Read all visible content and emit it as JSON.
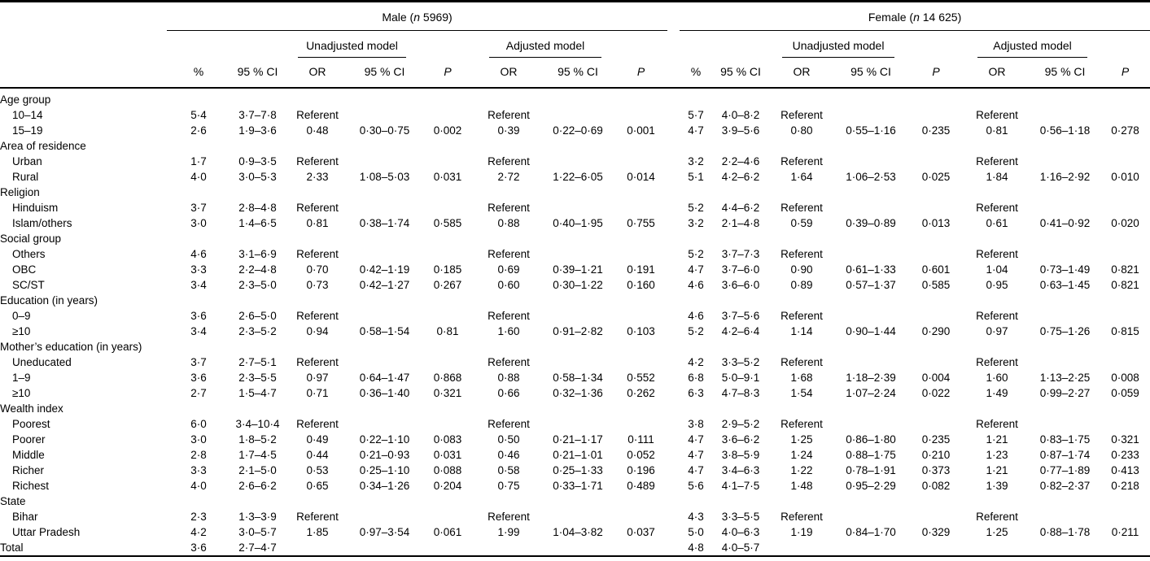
{
  "page": {
    "background": "#ffffff",
    "text_color": "#000000",
    "rule_color": "#000000"
  },
  "header": {
    "male_group": {
      "pre": "Male (",
      "it": "n",
      "post": " 5969)"
    },
    "female_group": {
      "pre": "Female (",
      "it": "n",
      "post": " 14 625)"
    },
    "unadjusted_label": "Unadjusted model",
    "adjusted_label": "Adjusted model",
    "columns": [
      "%",
      "95 % CI",
      "OR",
      "95 % CI",
      "P",
      "OR",
      "95 % CI",
      "P"
    ]
  },
  "rows": [
    {
      "label": "Age group",
      "indent": false,
      "male": [
        "",
        "",
        "",
        "",
        "",
        "",
        "",
        ""
      ],
      "female": [
        "",
        "",
        "",
        "",
        "",
        "",
        "",
        ""
      ]
    },
    {
      "label": "10–14",
      "indent": true,
      "male": [
        "5·4",
        "3·7–7·8",
        "Referent",
        "",
        "",
        "Referent",
        "",
        ""
      ],
      "female": [
        "5·7",
        "4·0–8·2",
        "Referent",
        "",
        "",
        "Referent",
        "",
        ""
      ]
    },
    {
      "label": "15–19",
      "indent": true,
      "male": [
        "2·6",
        "1·9–3·6",
        "0·48",
        "0·30–0·75",
        "0·002",
        "0·39",
        "0·22–0·69",
        "0·001"
      ],
      "female": [
        "4·7",
        "3·9–5·6",
        "0·80",
        "0·55–1·16",
        "0·235",
        "0·81",
        "0·56–1·18",
        "0·278"
      ]
    },
    {
      "label": "Area of residence",
      "indent": false,
      "male": [
        "",
        "",
        "",
        "",
        "",
        "",
        "",
        ""
      ],
      "female": [
        "",
        "",
        "",
        "",
        "",
        "",
        "",
        ""
      ]
    },
    {
      "label": "Urban",
      "indent": true,
      "male": [
        "1·7",
        "0·9–3·5",
        "Referent",
        "",
        "",
        "Referent",
        "",
        ""
      ],
      "female": [
        "3·2",
        "2·2–4·6",
        "Referent",
        "",
        "",
        "Referent",
        "",
        ""
      ]
    },
    {
      "label": "Rural",
      "indent": true,
      "male": [
        "4·0",
        "3·0–5·3",
        "2·33",
        "1·08–5·03",
        "0·031",
        "2·72",
        "1·22–6·05",
        "0·014"
      ],
      "female": [
        "5·1",
        "4·2–6·2",
        "1·64",
        "1·06–2·53",
        "0·025",
        "1·84",
        "1·16–2·92",
        "0·010"
      ]
    },
    {
      "label": "Religion",
      "indent": false,
      "male": [
        "",
        "",
        "",
        "",
        "",
        "",
        "",
        ""
      ],
      "female": [
        "",
        "",
        "",
        "",
        "",
        "",
        "",
        ""
      ]
    },
    {
      "label": "Hinduism",
      "indent": true,
      "male": [
        "3·7",
        "2·8–4·8",
        "Referent",
        "",
        "",
        "Referent",
        "",
        ""
      ],
      "female": [
        "5·2",
        "4·4–6·2",
        "Referent",
        "",
        "",
        "Referent",
        "",
        ""
      ]
    },
    {
      "label": "Islam/others",
      "indent": true,
      "male": [
        "3·0",
        "1·4–6·5",
        "0·81",
        "0·38–1·74",
        "0·585",
        "0·88",
        "0·40–1·95",
        "0·755"
      ],
      "female": [
        "3·2",
        "2·1–4·8",
        "0·59",
        "0·39–0·89",
        "0·013",
        "0·61",
        "0·41–0·92",
        "0·020"
      ]
    },
    {
      "label": "Social group",
      "indent": false,
      "male": [
        "",
        "",
        "",
        "",
        "",
        "",
        "",
        ""
      ],
      "female": [
        "",
        "",
        "",
        "",
        "",
        "",
        "",
        ""
      ]
    },
    {
      "label": "Others",
      "indent": true,
      "male": [
        "4·6",
        "3·1–6·9",
        "Referent",
        "",
        "",
        "Referent",
        "",
        ""
      ],
      "female": [
        "5·2",
        "3·7–7·3",
        "Referent",
        "",
        "",
        "Referent",
        "",
        ""
      ]
    },
    {
      "label": "OBC",
      "indent": true,
      "male": [
        "3·3",
        "2·2–4·8",
        "0·70",
        "0·42–1·19",
        "0·185",
        "0·69",
        "0·39–1·21",
        "0·191"
      ],
      "female": [
        "4·7",
        "3·7–6·0",
        "0·90",
        "0·61–1·33",
        "0·601",
        "1·04",
        "0·73–1·49",
        "0·821"
      ]
    },
    {
      "label": "SC/ST",
      "indent": true,
      "male": [
        "3·4",
        "2·3–5·0",
        "0·73",
        "0·42–1·27",
        "0·267",
        "0·60",
        "0·30–1·22",
        "0·160"
      ],
      "female": [
        "4·6",
        "3·6–6·0",
        "0·89",
        "0·57–1·37",
        "0·585",
        "0·95",
        "0·63–1·45",
        "0·821"
      ]
    },
    {
      "label": "Education (in years)",
      "indent": false,
      "male": [
        "",
        "",
        "",
        "",
        "",
        "",
        "",
        ""
      ],
      "female": [
        "",
        "",
        "",
        "",
        "",
        "",
        "",
        ""
      ]
    },
    {
      "label": "0–9",
      "indent": true,
      "male": [
        "3·6",
        "2·6–5·0",
        "Referent",
        "",
        "",
        "Referent",
        "",
        ""
      ],
      "female": [
        "4·6",
        "3·7–5·6",
        "Referent",
        "",
        "",
        "Referent",
        "",
        ""
      ]
    },
    {
      "label": "≥10",
      "indent": true,
      "male": [
        "3·4",
        "2·3–5·2",
        "0·94",
        "0·58–1·54",
        "0·81",
        "1·60",
        "0·91–2·82",
        "0·103"
      ],
      "female": [
        "5·2",
        "4·2–6·4",
        "1·14",
        "0·90–1·44",
        "0·290",
        "0·97",
        "0·75–1·26",
        "0·815"
      ]
    },
    {
      "label": "Mother’s education (in years)",
      "indent": false,
      "male": [
        "",
        "",
        "",
        "",
        "",
        "",
        "",
        ""
      ],
      "female": [
        "",
        "",
        "",
        "",
        "",
        "",
        "",
        ""
      ]
    },
    {
      "label": "Uneducated",
      "indent": true,
      "male": [
        "3·7",
        "2·7–5·1",
        "Referent",
        "",
        "",
        "Referent",
        "",
        ""
      ],
      "female": [
        "4·2",
        "3·3–5·2",
        "Referent",
        "",
        "",
        "Referent",
        "",
        ""
      ]
    },
    {
      "label": "1–9",
      "indent": true,
      "male": [
        "3·6",
        "2·3–5·5",
        "0·97",
        "0·64–1·47",
        "0·868",
        "0·88",
        "0·58–1·34",
        "0·552"
      ],
      "female": [
        "6·8",
        "5·0–9·1",
        "1·68",
        "1·18–2·39",
        "0·004",
        "1·60",
        "1·13–2·25",
        "0·008"
      ]
    },
    {
      "label": "≥10",
      "indent": true,
      "male": [
        "2·7",
        "1·5–4·7",
        "0·71",
        "0·36–1·40",
        "0·321",
        "0·66",
        "0·32–1·36",
        "0·262"
      ],
      "female": [
        "6·3",
        "4·7–8·3",
        "1·54",
        "1·07–2·24",
        "0·022",
        "1·49",
        "0·99–2·27",
        "0·059"
      ]
    },
    {
      "label": "Wealth index",
      "indent": false,
      "male": [
        "",
        "",
        "",
        "",
        "",
        "",
        "",
        ""
      ],
      "female": [
        "",
        "",
        "",
        "",
        "",
        "",
        "",
        ""
      ]
    },
    {
      "label": "Poorest",
      "indent": true,
      "male": [
        "6·0",
        "3·4–10·4",
        "Referent",
        "",
        "",
        "Referent",
        "",
        ""
      ],
      "female": [
        "3·8",
        "2·9–5·2",
        "Referent",
        "",
        "",
        "Referent",
        "",
        ""
      ]
    },
    {
      "label": "Poorer",
      "indent": true,
      "male": [
        "3·0",
        "1·8–5·2",
        "0·49",
        "0·22–1·10",
        "0·083",
        "0·50",
        "0·21–1·17",
        "0·111"
      ],
      "female": [
        "4·7",
        "3·6–6·2",
        "1·25",
        "0·86–1·80",
        "0·235",
        "1·21",
        "0·83–1·75",
        "0·321"
      ]
    },
    {
      "label": "Middle",
      "indent": true,
      "male": [
        "2·8",
        "1·7–4·5",
        "0·44",
        "0·21–0·93",
        "0·031",
        "0·46",
        "0·21–1·01",
        "0·052"
      ],
      "female": [
        "4·7",
        "3·8–5·9",
        "1·24",
        "0·88–1·75",
        "0·210",
        "1·23",
        "0·87–1·74",
        "0·233"
      ]
    },
    {
      "label": "Richer",
      "indent": true,
      "male": [
        "3·3",
        "2·1–5·0",
        "0·53",
        "0·25–1·10",
        "0·088",
        "0·58",
        "0·25–1·33",
        "0·196"
      ],
      "female": [
        "4·7",
        "3·4–6·3",
        "1·22",
        "0·78–1·91",
        "0·373",
        "1·21",
        "0·77–1·89",
        "0·413"
      ]
    },
    {
      "label": "Richest",
      "indent": true,
      "male": [
        "4·0",
        "2·6–6·2",
        "0·65",
        "0·34–1·26",
        "0·204",
        "0·75",
        "0·33–1·71",
        "0·489"
      ],
      "female": [
        "5·6",
        "4·1–7·5",
        "1·48",
        "0·95–2·29",
        "0·082",
        "1·39",
        "0·82–2·37",
        "0·218"
      ]
    },
    {
      "label": "State",
      "indent": false,
      "male": [
        "",
        "",
        "",
        "",
        "",
        "",
        "",
        ""
      ],
      "female": [
        "",
        "",
        "",
        "",
        "",
        "",
        "",
        ""
      ]
    },
    {
      "label": "Bihar",
      "indent": true,
      "male": [
        "2·3",
        "1·3–3·9",
        "Referent",
        "",
        "",
        "Referent",
        "",
        ""
      ],
      "female": [
        "4·3",
        "3·3–5·5",
        "Referent",
        "",
        "",
        "Referent",
        "",
        ""
      ]
    },
    {
      "label": "Uttar Pradesh",
      "indent": true,
      "male": [
        "4·2",
        "3·0–5·7",
        "1·85",
        "0·97–3·54",
        "0·061",
        "1·99",
        "1·04–3·82",
        "0·037"
      ],
      "female": [
        "5·0",
        "4·0–6·3",
        "1·19",
        "0·84–1·70",
        "0·329",
        "1·25",
        "0·88–1·78",
        "0·211"
      ]
    },
    {
      "label": "Total",
      "indent": false,
      "male": [
        "3·6",
        "2·7–4·7",
        "",
        "",
        "",
        "",
        "",
        ""
      ],
      "female": [
        "4·8",
        "4·0–5·7",
        "",
        "",
        "",
        "",
        "",
        ""
      ]
    }
  ]
}
